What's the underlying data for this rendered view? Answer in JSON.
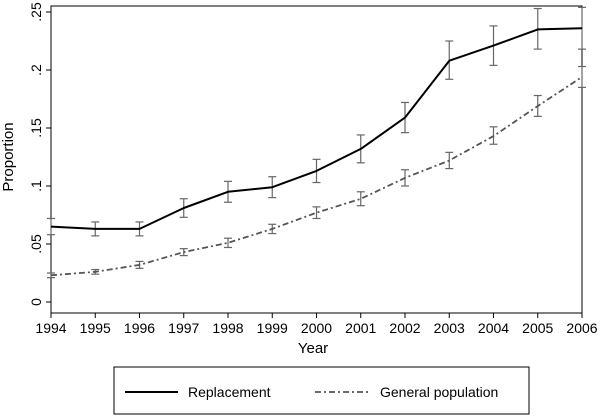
{
  "chart_data": {
    "type": "line",
    "xlabel": "Year",
    "ylabel": "Proportion",
    "x": [
      1994,
      1995,
      1996,
      1997,
      1998,
      1999,
      2000,
      2001,
      2002,
      2003,
      2004,
      2005,
      2006
    ],
    "x_tick_labels": [
      "1994",
      "1995",
      "1996",
      "1997",
      "1998",
      "1999",
      "2000",
      "2001",
      "2002",
      "2003",
      "2004",
      "2005",
      "2006"
    ],
    "y_ticks": [
      0,
      0.05,
      0.1,
      0.15,
      0.2,
      0.25
    ],
    "y_tick_labels": [
      "0",
      ".05",
      ".1",
      ".15",
      ".2",
      ".25"
    ],
    "xlim": [
      1994,
      2006
    ],
    "ylim": [
      0,
      0.25
    ],
    "grid": false,
    "legend_position": "bottom",
    "series": [
      {
        "name": "Replacement",
        "style": "solid",
        "color": "#000000",
        "values": [
          0.065,
          0.063,
          0.063,
          0.081,
          0.095,
          0.099,
          0.113,
          0.132,
          0.159,
          0.208,
          0.221,
          0.235,
          0.236
        ],
        "error_low": [
          0.058,
          0.057,
          0.057,
          0.073,
          0.086,
          0.09,
          0.103,
          0.12,
          0.146,
          0.192,
          0.204,
          0.218,
          0.218
        ],
        "error_high": [
          0.072,
          0.069,
          0.069,
          0.089,
          0.104,
          0.108,
          0.123,
          0.144,
          0.172,
          0.225,
          0.238,
          0.253,
          0.254
        ]
      },
      {
        "name": "General population",
        "style": "dash-dot",
        "color": "#555555",
        "values": [
          0.023,
          0.026,
          0.032,
          0.043,
          0.051,
          0.063,
          0.077,
          0.089,
          0.107,
          0.122,
          0.143,
          0.169,
          0.194
        ],
        "error_low": [
          0.021,
          0.024,
          0.029,
          0.04,
          0.047,
          0.059,
          0.072,
          0.083,
          0.1,
          0.115,
          0.136,
          0.16,
          0.185
        ],
        "error_high": [
          0.025,
          0.028,
          0.035,
          0.046,
          0.055,
          0.067,
          0.082,
          0.095,
          0.114,
          0.129,
          0.151,
          0.178,
          0.203
        ]
      }
    ]
  }
}
